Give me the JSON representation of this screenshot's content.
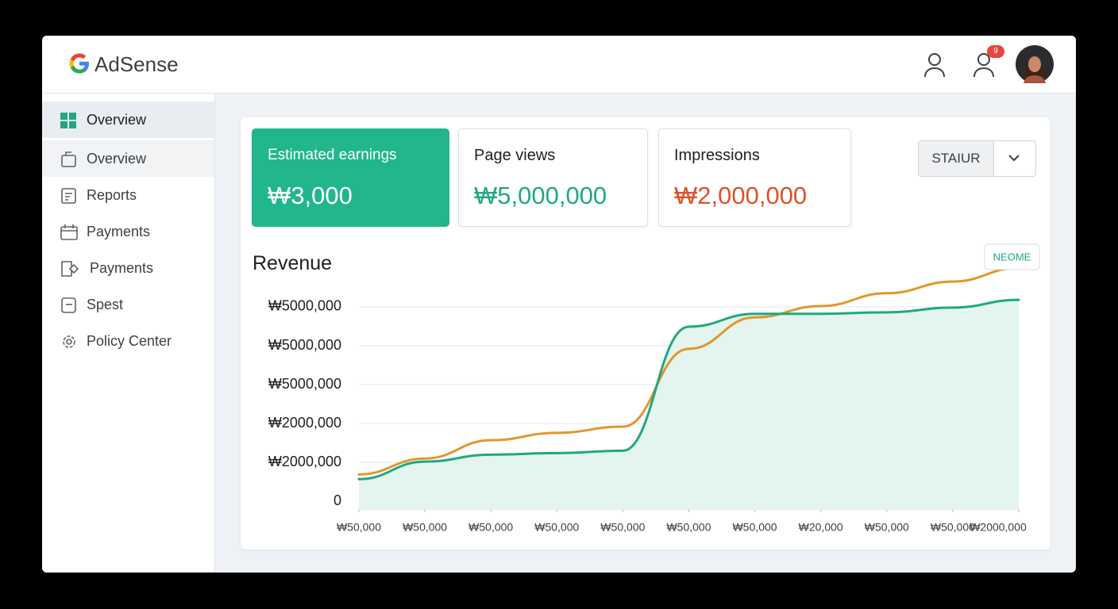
{
  "header": {
    "logo": "AdSense",
    "notification_count": "9"
  },
  "sidebar": {
    "items": [
      "Overview",
      "Overview",
      "Reports",
      "Payments",
      "Payments",
      "Spest",
      "Policy Center"
    ]
  },
  "cards": [
    {
      "label": "Estimated earnings",
      "value": "₩3,000"
    },
    {
      "label": "Page views",
      "value": "₩5,000,000"
    },
    {
      "label": "Impressions",
      "value": "₩2,000,000"
    }
  ],
  "dropdown": {
    "label": "STAIUR"
  },
  "chart_data": {
    "type": "line",
    "title": "Revenue",
    "badge": "NEOME",
    "categories": [
      "₩50,000",
      "₩50,000",
      "₩50,000",
      "₩50,000",
      "₩50,000",
      "₩50,000",
      "₩50,000",
      "₩20,000",
      "₩50,000",
      "₩50,000",
      "₩2000,000"
    ],
    "series": [
      {
        "color": "#1fa882",
        "values": [
          0.57,
          1.02,
          1.2,
          1.24,
          1.3,
          4.49,
          4.82,
          4.82,
          4.86,
          4.98,
          5.18
        ]
      },
      {
        "color": "#e3962e",
        "values": [
          0.69,
          1.1,
          1.57,
          1.76,
          1.92,
          3.92,
          4.73,
          5.02,
          5.35,
          5.65,
          6.0
        ]
      }
    ],
    "area_color": "#e3f5ee",
    "ylim": [
      -0.2,
      6.1
    ],
    "yticks": [
      0,
      1,
      2,
      3,
      4,
      5
    ],
    "ytick_labels": [
      "0",
      "₩2000,000",
      "₩2000,000",
      "₩5000,000",
      "₩5000,000",
      "₩5000,000"
    ],
    "grid": true
  }
}
